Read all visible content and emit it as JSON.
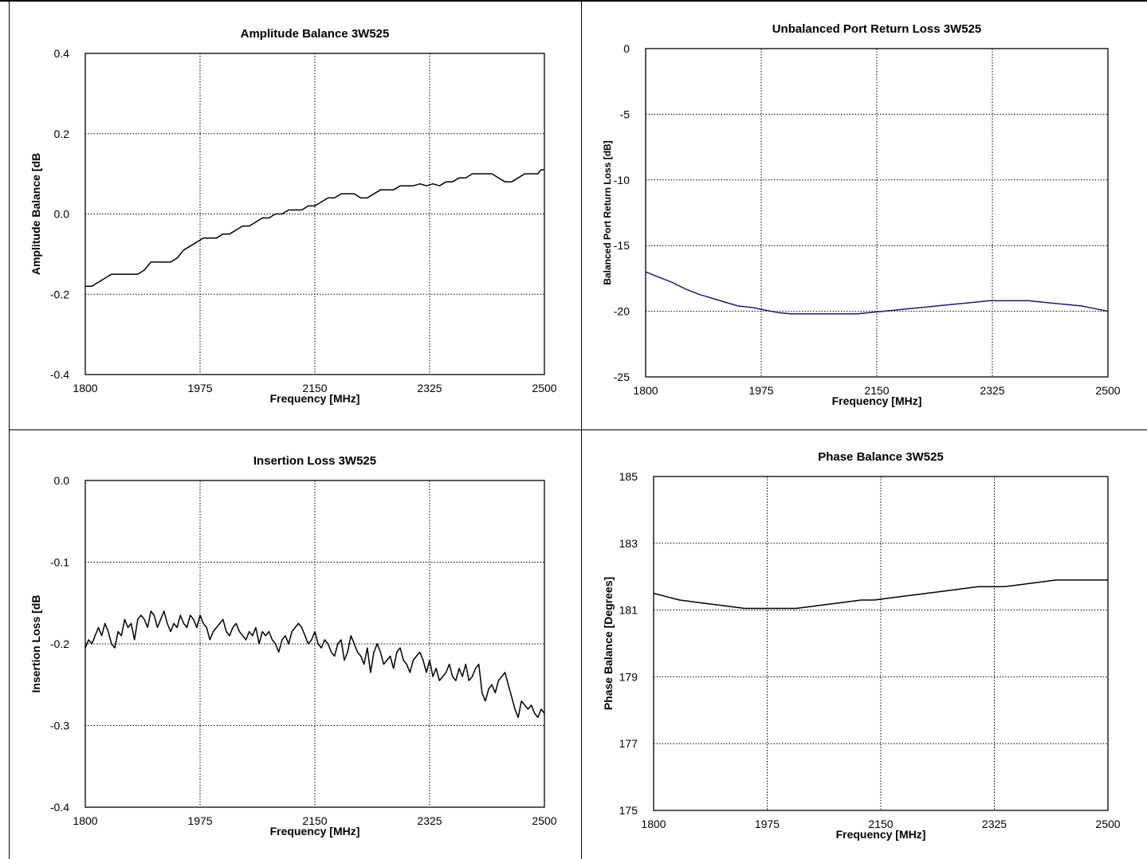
{
  "page": {
    "cells": [
      {
        "panel_id": "amplitude-balance",
        "chart_data": {
          "type": "line",
          "title": "Amplitude Balance 3W525",
          "xlabel": "Frequency [MHz]",
          "ylabel": "Amplitude Balance [dB",
          "xlim": [
            1800,
            2500
          ],
          "ylim": [
            -0.4,
            0.4
          ],
          "xticks": [
            1800,
            1975,
            2150,
            2325,
            2500
          ],
          "yticks": [
            -0.4,
            -0.2,
            0.0,
            0.2,
            0.4
          ],
          "xtick_labels": [
            "1800",
            "1975",
            "2150",
            "2325",
            "2500"
          ],
          "ytick_labels": [
            "-0.4",
            "-0.2",
            "0.0",
            "0.2",
            "0.4"
          ],
          "grid": true,
          "line_color": "#000000",
          "series": [
            {
              "x": [
                1800,
                1810,
                1820,
                1840,
                1860,
                1880,
                1890,
                1900,
                1910,
                1920,
                1930,
                1940,
                1950,
                1960,
                1970,
                1980,
                1990,
                2000,
                2010,
                2020,
                2030,
                2040,
                2050,
                2060,
                2070,
                2080,
                2090,
                2100,
                2110,
                2120,
                2130,
                2140,
                2150,
                2160,
                2170,
                2180,
                2190,
                2200,
                2210,
                2220,
                2230,
                2240,
                2250,
                2260,
                2270,
                2280,
                2290,
                2300,
                2310,
                2320,
                2330,
                2340,
                2350,
                2360,
                2370,
                2380,
                2390,
                2400,
                2410,
                2420,
                2430,
                2440,
                2450,
                2460,
                2470,
                2480,
                2490,
                2495,
                2500
              ],
              "y": [
                -0.18,
                -0.18,
                -0.17,
                -0.15,
                -0.15,
                -0.15,
                -0.14,
                -0.12,
                -0.12,
                -0.12,
                -0.12,
                -0.11,
                -0.09,
                -0.08,
                -0.07,
                -0.06,
                -0.06,
                -0.06,
                -0.05,
                -0.05,
                -0.04,
                -0.03,
                -0.03,
                -0.02,
                -0.01,
                -0.01,
                0.0,
                0.0,
                0.01,
                0.01,
                0.01,
                0.02,
                0.02,
                0.03,
                0.04,
                0.04,
                0.05,
                0.05,
                0.05,
                0.04,
                0.04,
                0.05,
                0.06,
                0.06,
                0.06,
                0.07,
                0.07,
                0.07,
                0.075,
                0.07,
                0.075,
                0.07,
                0.08,
                0.08,
                0.09,
                0.09,
                0.1,
                0.1,
                0.1,
                0.1,
                0.09,
                0.08,
                0.08,
                0.09,
                0.1,
                0.1,
                0.1,
                0.11,
                0.11
              ]
            }
          ]
        }
      },
      {
        "panel_id": "return-loss",
        "chart_data": {
          "type": "line",
          "title": "Unbalanced Port Return Loss 3W525",
          "xlabel": "Frequency [MHz]",
          "ylabel": "Balanced Port Return Loss [dB]",
          "xlim": [
            1800,
            2500
          ],
          "ylim": [
            -25,
            0
          ],
          "xticks": [
            1800,
            1975,
            2150,
            2325,
            2500
          ],
          "yticks": [
            -25,
            -20,
            -15,
            -10,
            -5,
            0
          ],
          "xtick_labels": [
            "1800",
            "1975",
            "2150",
            "2325",
            "2500"
          ],
          "ytick_labels": [
            "-25",
            "-20",
            "-15",
            "-10",
            "-5",
            "0"
          ],
          "grid": true,
          "line_color": "#1c1c6e",
          "series": [
            {
              "x": [
                1800,
                1820,
                1840,
                1860,
                1880,
                1900,
                1920,
                1940,
                1960,
                1980,
                2000,
                2020,
                2040,
                2060,
                2080,
                2100,
                2120,
                2140,
                2160,
                2180,
                2200,
                2220,
                2240,
                2260,
                2280,
                2300,
                2320,
                2340,
                2360,
                2380,
                2400,
                2420,
                2440,
                2460,
                2480,
                2500
              ],
              "y": [
                -17.0,
                -17.4,
                -17.8,
                -18.3,
                -18.7,
                -19.0,
                -19.3,
                -19.6,
                -19.7,
                -19.9,
                -20.1,
                -20.2,
                -20.2,
                -20.2,
                -20.2,
                -20.2,
                -20.2,
                -20.1,
                -20.0,
                -19.9,
                -19.8,
                -19.7,
                -19.6,
                -19.5,
                -19.4,
                -19.3,
                -19.2,
                -19.2,
                -19.2,
                -19.2,
                -19.3,
                -19.4,
                -19.5,
                -19.6,
                -19.8,
                -20.0
              ]
            }
          ]
        }
      },
      {
        "panel_id": "insertion-loss",
        "chart_data": {
          "type": "line",
          "title": "Insertion Loss 3W525",
          "xlabel": "Frequency [MHz]",
          "ylabel": "Insertion Loss [dB",
          "xlim": [
            1800,
            2500
          ],
          "ylim": [
            -0.4,
            0.0
          ],
          "xticks": [
            1800,
            1975,
            2150,
            2325,
            2500
          ],
          "yticks": [
            -0.4,
            -0.3,
            -0.2,
            -0.1,
            0.0
          ],
          "xtick_labels": [
            "1800",
            "1975",
            "2150",
            "2325",
            "2500"
          ],
          "ytick_labels": [
            "-0.4",
            "-0.3",
            "-0.2",
            "-0.1",
            "0.0"
          ],
          "grid": true,
          "line_color": "#000000",
          "series": [
            {
              "x": [
                1800,
                1805,
                1810,
                1815,
                1820,
                1825,
                1830,
                1835,
                1840,
                1845,
                1850,
                1855,
                1860,
                1865,
                1870,
                1875,
                1880,
                1885,
                1890,
                1895,
                1900,
                1905,
                1910,
                1915,
                1920,
                1925,
                1930,
                1935,
                1940,
                1945,
                1950,
                1955,
                1960,
                1965,
                1970,
                1975,
                1980,
                1985,
                1990,
                1995,
                2000,
                2005,
                2010,
                2015,
                2020,
                2025,
                2030,
                2035,
                2040,
                2045,
                2050,
                2055,
                2060,
                2065,
                2070,
                2075,
                2080,
                2085,
                2090,
                2095,
                2100,
                2105,
                2110,
                2115,
                2120,
                2125,
                2130,
                2135,
                2140,
                2145,
                2150,
                2155,
                2160,
                2165,
                2170,
                2175,
                2180,
                2185,
                2190,
                2195,
                2200,
                2205,
                2210,
                2215,
                2220,
                2225,
                2230,
                2235,
                2240,
                2245,
                2250,
                2255,
                2260,
                2265,
                2270,
                2275,
                2280,
                2285,
                2290,
                2295,
                2300,
                2305,
                2310,
                2315,
                2320,
                2325,
                2330,
                2335,
                2340,
                2345,
                2350,
                2355,
                2360,
                2365,
                2370,
                2375,
                2380,
                2385,
                2390,
                2395,
                2400,
                2405,
                2410,
                2415,
                2420,
                2425,
                2430,
                2435,
                2440,
                2445,
                2450,
                2455,
                2460,
                2465,
                2470,
                2475,
                2480,
                2485,
                2490,
                2495,
                2500
              ],
              "y": [
                -0.205,
                -0.195,
                -0.2,
                -0.19,
                -0.18,
                -0.19,
                -0.175,
                -0.185,
                -0.2,
                -0.205,
                -0.185,
                -0.19,
                -0.17,
                -0.18,
                -0.175,
                -0.195,
                -0.17,
                -0.165,
                -0.17,
                -0.18,
                -0.16,
                -0.165,
                -0.18,
                -0.17,
                -0.16,
                -0.175,
                -0.185,
                -0.175,
                -0.18,
                -0.165,
                -0.175,
                -0.18,
                -0.165,
                -0.17,
                -0.18,
                -0.165,
                -0.175,
                -0.18,
                -0.195,
                -0.185,
                -0.18,
                -0.175,
                -0.17,
                -0.185,
                -0.19,
                -0.18,
                -0.175,
                -0.185,
                -0.19,
                -0.195,
                -0.185,
                -0.19,
                -0.18,
                -0.2,
                -0.185,
                -0.19,
                -0.185,
                -0.195,
                -0.2,
                -0.21,
                -0.195,
                -0.19,
                -0.2,
                -0.185,
                -0.18,
                -0.175,
                -0.18,
                -0.19,
                -0.2,
                -0.195,
                -0.185,
                -0.2,
                -0.205,
                -0.195,
                -0.2,
                -0.21,
                -0.215,
                -0.2,
                -0.195,
                -0.22,
                -0.21,
                -0.19,
                -0.2,
                -0.21,
                -0.215,
                -0.225,
                -0.205,
                -0.235,
                -0.21,
                -0.2,
                -0.21,
                -0.225,
                -0.22,
                -0.215,
                -0.23,
                -0.21,
                -0.205,
                -0.22,
                -0.225,
                -0.235,
                -0.22,
                -0.215,
                -0.21,
                -0.22,
                -0.235,
                -0.22,
                -0.24,
                -0.23,
                -0.245,
                -0.24,
                -0.235,
                -0.225,
                -0.24,
                -0.245,
                -0.23,
                -0.24,
                -0.225,
                -0.245,
                -0.24,
                -0.23,
                -0.225,
                -0.26,
                -0.27,
                -0.255,
                -0.25,
                -0.26,
                -0.245,
                -0.24,
                -0.235,
                -0.25,
                -0.265,
                -0.28,
                -0.29,
                -0.27,
                -0.275,
                -0.28,
                -0.275,
                -0.285,
                -0.29,
                -0.28,
                -0.285
              ]
            }
          ]
        }
      },
      {
        "panel_id": "phase-balance",
        "chart_data": {
          "type": "line",
          "title": "Phase Balance 3W525",
          "xlabel": "Frequency [MHz]",
          "ylabel": "Phase Balance [Degrees]",
          "xlim": [
            1800,
            2500
          ],
          "ylim": [
            175,
            185
          ],
          "xticks": [
            1800,
            1975,
            2150,
            2325,
            2500
          ],
          "yticks": [
            175,
            177,
            179,
            181,
            183,
            185
          ],
          "xtick_labels": [
            "1800",
            "1975",
            "2150",
            "2325",
            "2500"
          ],
          "ytick_labels": [
            "175",
            "177",
            "179",
            "181",
            "183",
            "185"
          ],
          "grid": true,
          "line_color": "#000000",
          "series": [
            {
              "x": [
                1800,
                1820,
                1840,
                1860,
                1880,
                1900,
                1920,
                1940,
                1960,
                1980,
                2000,
                2020,
                2040,
                2060,
                2080,
                2100,
                2120,
                2140,
                2160,
                2180,
                2200,
                2220,
                2240,
                2260,
                2280,
                2300,
                2320,
                2340,
                2360,
                2380,
                2400,
                2420,
                2440,
                2460,
                2480,
                2500
              ],
              "y": [
                181.5,
                181.4,
                181.3,
                181.25,
                181.2,
                181.15,
                181.1,
                181.05,
                181.05,
                181.05,
                181.05,
                181.05,
                181.1,
                181.15,
                181.2,
                181.25,
                181.3,
                181.3,
                181.35,
                181.4,
                181.45,
                181.5,
                181.55,
                181.6,
                181.65,
                181.7,
                181.7,
                181.7,
                181.75,
                181.8,
                181.85,
                181.9,
                181.9,
                181.9,
                181.9,
                181.9
              ]
            }
          ]
        }
      }
    ]
  }
}
